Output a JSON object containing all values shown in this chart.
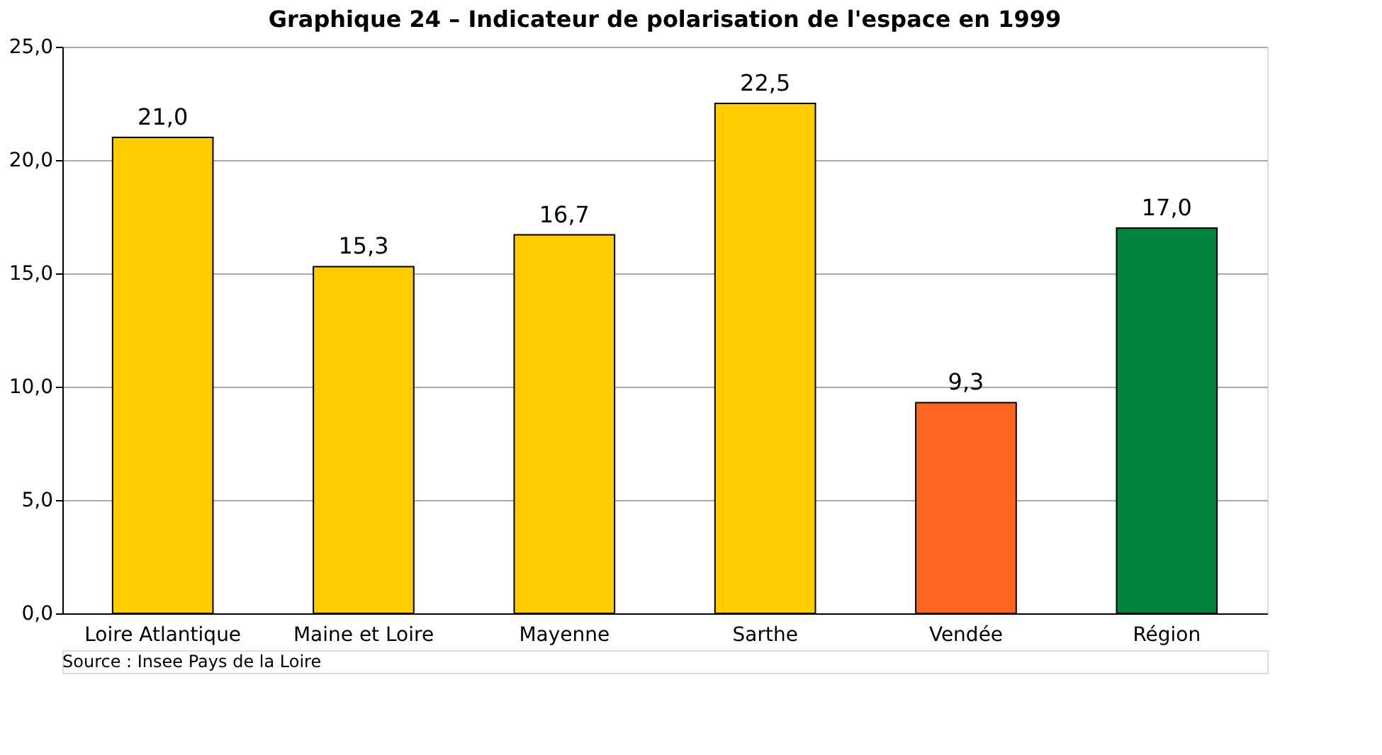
{
  "chart_data": {
    "type": "bar",
    "title": "Graphique 24 – Indicateur de polarisation de l'espace en 1999",
    "categories": [
      "Loire Atlantique",
      "Maine et Loire",
      "Mayenne",
      "Sarthe",
      "Vendée",
      "Région"
    ],
    "values": [
      21.0,
      15.3,
      16.7,
      22.5,
      9.3,
      17.0
    ],
    "value_labels": [
      "21,0",
      "15,3",
      "16,7",
      "22,5",
      "9,3",
      "17,0"
    ],
    "colors": [
      "#ffcc00",
      "#ffcc00",
      "#ffcc00",
      "#ffcc00",
      "#ff6622",
      "#00843d"
    ],
    "ylim": [
      0,
      25
    ],
    "yticks": [
      {
        "value": 0,
        "label": "0,0"
      },
      {
        "value": 5,
        "label": "5,0"
      },
      {
        "value": 10,
        "label": "10,0"
      },
      {
        "value": 15,
        "label": "15,0"
      },
      {
        "value": 20,
        "label": "20,0"
      },
      {
        "value": 25,
        "label": "25,0"
      }
    ],
    "grid": "y",
    "annotations": [
      "Source : Insee Pays de la Loire"
    ]
  }
}
